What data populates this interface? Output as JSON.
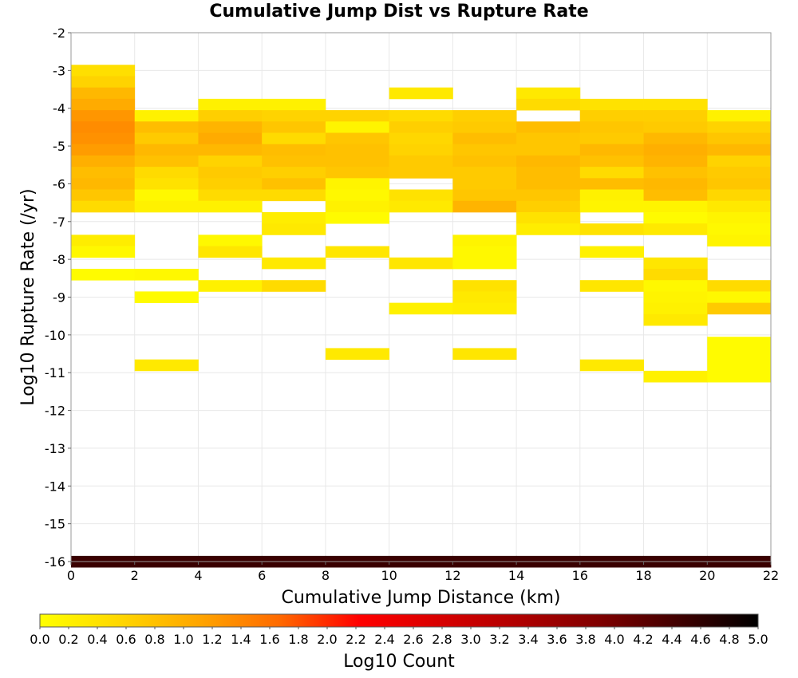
{
  "chart_data": {
    "type": "heatmap",
    "title": "Cumulative Jump Dist vs Rupture Rate",
    "xlabel": "Cumulative Jump Distance (km)",
    "ylabel": "Log10 Rupture Rate (/yr)",
    "colorbar_label": "Log10 Count",
    "xlim": [
      0,
      22
    ],
    "ylim": [
      -16,
      -2
    ],
    "xticks": [
      "0",
      "2",
      "4",
      "6",
      "8",
      "10",
      "12",
      "14",
      "16",
      "18",
      "20",
      "22"
    ],
    "yticks": [
      "-2",
      "-3",
      "-4",
      "-5",
      "-6",
      "-7",
      "-8",
      "-9",
      "-10",
      "-11",
      "-12",
      "-13",
      "-14",
      "-15",
      "-16"
    ],
    "colorbar_ticks": [
      "0.0",
      "0.2",
      "0.4",
      "0.6",
      "0.8",
      "1.0",
      "1.2",
      "1.4",
      "1.6",
      "1.8",
      "2.0",
      "2.2",
      "2.4",
      "2.6",
      "2.8",
      "3.0",
      "3.2",
      "3.4",
      "3.6",
      "3.8",
      "4.0",
      "4.2",
      "4.4",
      "4.6",
      "4.8",
      "5.0"
    ],
    "colorscale": {
      "min": 0,
      "max": 5,
      "stops": [
        "#ffff00",
        "#ffd700",
        "#ffa500",
        "#ff6a00",
        "#ff0000",
        "#d80000",
        "#b00000",
        "#800000",
        "#400000",
        "#000000"
      ]
    },
    "grid": true,
    "bin_width_x": 2,
    "bin_width_y": 0.3,
    "columns": [
      {
        "x": 0,
        "cells": [
          [
            -3.0,
            0.45
          ],
          [
            -3.3,
            0.6
          ],
          [
            -3.6,
            0.9
          ],
          [
            -3.9,
            1.05
          ],
          [
            -4.2,
            1.25
          ],
          [
            -4.5,
            1.35
          ],
          [
            -4.8,
            1.3
          ],
          [
            -5.1,
            1.2
          ],
          [
            -5.4,
            1.0
          ],
          [
            -5.7,
            0.85
          ],
          [
            -6.0,
            0.9
          ],
          [
            -6.3,
            0.75
          ],
          [
            -6.6,
            0.5
          ],
          [
            -7.5,
            0.25
          ],
          [
            -7.8,
            0.1
          ],
          [
            -8.4,
            0.05
          ],
          [
            -16.0,
            4.5
          ]
        ]
      },
      {
        "x": 2,
        "cells": [
          [
            -4.2,
            0.2
          ],
          [
            -4.5,
            0.85
          ],
          [
            -4.8,
            0.7
          ],
          [
            -5.1,
            0.9
          ],
          [
            -5.4,
            0.8
          ],
          [
            -5.7,
            0.5
          ],
          [
            -6.0,
            0.4
          ],
          [
            -6.3,
            0.1
          ],
          [
            -6.6,
            0.2
          ],
          [
            -8.4,
            0.1
          ],
          [
            -9.0,
            0.05
          ],
          [
            -10.8,
            0.3
          ],
          [
            -16.0,
            4.5
          ]
        ]
      },
      {
        "x": 4,
        "cells": [
          [
            -3.9,
            0.2
          ],
          [
            -4.2,
            0.65
          ],
          [
            -4.5,
            0.95
          ],
          [
            -4.8,
            1.05
          ],
          [
            -5.1,
            0.9
          ],
          [
            -5.4,
            0.6
          ],
          [
            -5.7,
            0.7
          ],
          [
            -6.0,
            0.65
          ],
          [
            -6.3,
            0.5
          ],
          [
            -6.6,
            0.2
          ],
          [
            -7.5,
            0.1
          ],
          [
            -7.8,
            0.35
          ],
          [
            -8.7,
            0.2
          ],
          [
            -16.0,
            4.5
          ]
        ]
      },
      {
        "x": 6,
        "cells": [
          [
            -3.9,
            0.2
          ],
          [
            -4.2,
            0.6
          ],
          [
            -4.5,
            0.75
          ],
          [
            -4.8,
            0.5
          ],
          [
            -5.1,
            0.85
          ],
          [
            -5.4,
            0.8
          ],
          [
            -5.7,
            0.65
          ],
          [
            -6.0,
            0.8
          ],
          [
            -6.3,
            0.5
          ],
          [
            -6.9,
            0.25
          ],
          [
            -7.2,
            0.3
          ],
          [
            -8.1,
            0.3
          ],
          [
            -8.7,
            0.5
          ],
          [
            -16.0,
            4.5
          ]
        ]
      },
      {
        "x": 8,
        "cells": [
          [
            -4.2,
            0.6
          ],
          [
            -4.5,
            0.15
          ],
          [
            -4.8,
            0.75
          ],
          [
            -5.1,
            0.8
          ],
          [
            -5.4,
            0.8
          ],
          [
            -5.7,
            0.75
          ],
          [
            -6.0,
            0.15
          ],
          [
            -6.3,
            0.1
          ],
          [
            -6.6,
            0.2
          ],
          [
            -6.9,
            0.05
          ],
          [
            -7.8,
            0.35
          ],
          [
            -10.5,
            0.3
          ],
          [
            -16.0,
            4.5
          ]
        ]
      },
      {
        "x": 10,
        "cells": [
          [
            -3.6,
            0.3
          ],
          [
            -4.2,
            0.5
          ],
          [
            -4.5,
            0.65
          ],
          [
            -4.8,
            0.55
          ],
          [
            -5.1,
            0.6
          ],
          [
            -5.4,
            0.7
          ],
          [
            -5.7,
            0.7
          ],
          [
            -6.3,
            0.4
          ],
          [
            -6.6,
            0.3
          ],
          [
            -8.1,
            0.35
          ],
          [
            -9.3,
            0.2
          ],
          [
            -16.0,
            4.5
          ]
        ]
      },
      {
        "x": 12,
        "cells": [
          [
            -4.2,
            0.65
          ],
          [
            -4.5,
            0.7
          ],
          [
            -4.8,
            0.85
          ],
          [
            -5.1,
            0.75
          ],
          [
            -5.4,
            0.8
          ],
          [
            -5.7,
            0.7
          ],
          [
            -6.0,
            0.7
          ],
          [
            -6.3,
            0.75
          ],
          [
            -6.6,
            0.95
          ],
          [
            -7.5,
            0.15
          ],
          [
            -7.8,
            0.1
          ],
          [
            -8.1,
            0.1
          ],
          [
            -8.7,
            0.4
          ],
          [
            -9.0,
            0.3
          ],
          [
            -9.3,
            0.25
          ],
          [
            -10.5,
            0.35
          ],
          [
            -16.0,
            4.5
          ]
        ]
      },
      {
        "x": 14,
        "cells": [
          [
            -3.6,
            0.3
          ],
          [
            -3.9,
            0.5
          ],
          [
            -4.5,
            0.85
          ],
          [
            -4.8,
            0.75
          ],
          [
            -5.1,
            0.75
          ],
          [
            -5.4,
            0.9
          ],
          [
            -5.7,
            0.85
          ],
          [
            -6.0,
            0.85
          ],
          [
            -6.3,
            0.75
          ],
          [
            -6.6,
            0.65
          ],
          [
            -6.9,
            0.4
          ],
          [
            -7.2,
            0.25
          ],
          [
            -16.0,
            4.5
          ]
        ]
      },
      {
        "x": 16,
        "cells": [
          [
            -3.9,
            0.4
          ],
          [
            -4.2,
            0.65
          ],
          [
            -4.5,
            0.75
          ],
          [
            -4.8,
            0.7
          ],
          [
            -5.1,
            0.9
          ],
          [
            -5.4,
            0.8
          ],
          [
            -5.7,
            0.5
          ],
          [
            -6.0,
            0.85
          ],
          [
            -6.3,
            0.2
          ],
          [
            -6.6,
            0.15
          ],
          [
            -7.2,
            0.4
          ],
          [
            -7.8,
            0.2
          ],
          [
            -8.7,
            0.35
          ],
          [
            -10.8,
            0.3
          ],
          [
            -16.0,
            4.5
          ]
        ]
      },
      {
        "x": 18,
        "cells": [
          [
            -3.9,
            0.4
          ],
          [
            -4.2,
            0.65
          ],
          [
            -4.5,
            0.7
          ],
          [
            -4.8,
            0.9
          ],
          [
            -5.1,
            1.0
          ],
          [
            -5.4,
            0.95
          ],
          [
            -5.7,
            0.8
          ],
          [
            -6.0,
            0.9
          ],
          [
            -6.3,
            0.85
          ],
          [
            -6.6,
            0.15
          ],
          [
            -6.9,
            0.05
          ],
          [
            -7.2,
            0.3
          ],
          [
            -8.1,
            0.35
          ],
          [
            -8.4,
            0.5
          ],
          [
            -8.7,
            0.1
          ],
          [
            -9.0,
            0.15
          ],
          [
            -9.3,
            0.2
          ],
          [
            -9.6,
            0.3
          ],
          [
            -11.1,
            0.2
          ],
          [
            -16.0,
            4.5
          ]
        ]
      },
      {
        "x": 20,
        "cells": [
          [
            -4.2,
            0.2
          ],
          [
            -4.5,
            0.6
          ],
          [
            -4.8,
            0.75
          ],
          [
            -5.1,
            0.9
          ],
          [
            -5.4,
            0.6
          ],
          [
            -5.7,
            0.7
          ],
          [
            -6.0,
            0.75
          ],
          [
            -6.3,
            0.55
          ],
          [
            -6.6,
            0.3
          ],
          [
            -6.9,
            0.15
          ],
          [
            -7.2,
            0.1
          ],
          [
            -7.5,
            0.15
          ],
          [
            -8.7,
            0.5
          ],
          [
            -9.0,
            0.1
          ],
          [
            -9.3,
            0.7
          ],
          [
            -10.2,
            0.05
          ],
          [
            -10.5,
            0.05
          ],
          [
            -10.8,
            0.05
          ],
          [
            -11.1,
            0.05
          ],
          [
            -16.0,
            4.5
          ]
        ]
      }
    ]
  }
}
